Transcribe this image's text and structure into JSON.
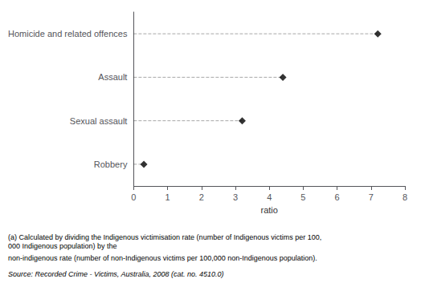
{
  "chart_data": {
    "type": "dot",
    "categories": [
      "Robbery",
      "Sexual assault",
      "Assault",
      "Homicide and related offences"
    ],
    "values": [
      0.3,
      3.2,
      4.4,
      7.2
    ],
    "color": "#000000",
    "marker": "diamond",
    "line_style": "dashed",
    "xlabel": "ratio",
    "xlim": [
      0,
      8
    ],
    "xticks": [
      0,
      1,
      2,
      3,
      4,
      5,
      6,
      7,
      8
    ],
    "grid": false,
    "annotations": [
      "(a) Calculated by dividing the Indigenous victimisation rate (number of Indigenous victims per 100,000 Indigenous population) by the",
      "non-indigenous rate (number of non-Indigenous victims per 100,000 non-Indigenous population)."
    ],
    "source": "Source: Recorded Crime - Victims, Australia, 2008 (cat. no. 4510.0)"
  }
}
